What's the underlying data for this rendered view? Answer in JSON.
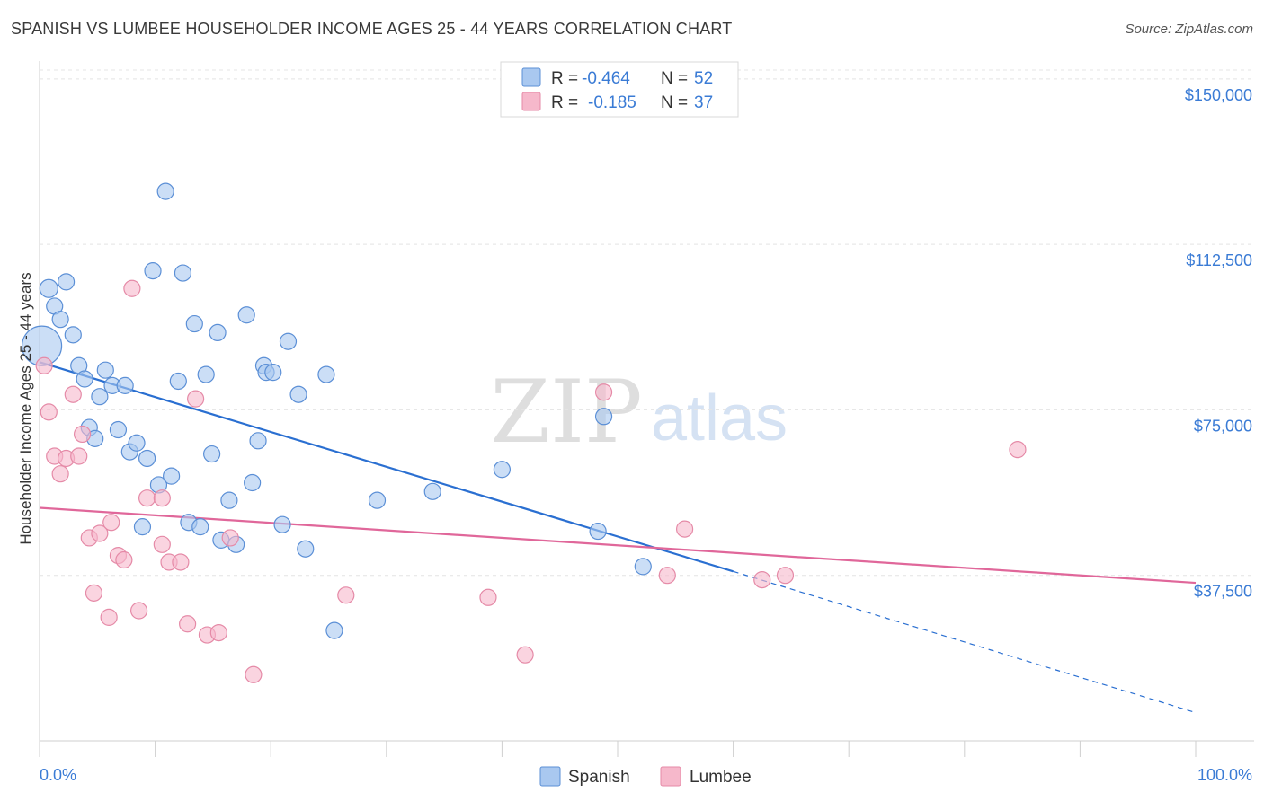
{
  "header": {
    "title": "SPANISH VS LUMBEE HOUSEHOLDER INCOME AGES 25 - 44 YEARS CORRELATION CHART",
    "source": "Source: ZipAtlas.com"
  },
  "watermark": {
    "zip": "ZIP",
    "atlas": "atlas"
  },
  "legend_box": {
    "rows": [
      {
        "r_label": "R =",
        "r_value": "-0.464",
        "n_label": "N =",
        "n_value": "52",
        "color": "#a9c8f0"
      },
      {
        "r_label": "R =",
        "r_value": "-0.185",
        "n_label": "N =",
        "n_value": "37",
        "color": "#f6b8cb"
      }
    ]
  },
  "bottom_legend": [
    {
      "label": "Spanish",
      "color": "#a9c8f0"
    },
    {
      "label": "Lumbee",
      "color": "#f6b8cb"
    }
  ],
  "chart_data": {
    "type": "scatter",
    "title": "SPANISH VS LUMBEE HOUSEHOLDER INCOME AGES 25 - 44 YEARS CORRELATION CHART",
    "xlabel": "",
    "ylabel": "Householder Income Ages 25 - 44 years",
    "xlim": [
      0,
      100
    ],
    "ylim": [
      0,
      152000
    ],
    "x_tick_labels": [
      "0.0%",
      "100.0%"
    ],
    "y_ticks": [
      37500,
      75000,
      112500,
      150000
    ],
    "y_tick_labels": [
      "$37,500",
      "$75,000",
      "$112,500",
      "$150,000"
    ],
    "grid": true,
    "legend_position": "top-center",
    "series": [
      {
        "name": "Spanish",
        "color": "#a9c8f0",
        "stroke": "#5b8fd6",
        "line_color": "#2a6fd1",
        "trend": {
          "x0": 0,
          "y0": 85800,
          "x1": 60,
          "y1": 38400,
          "dash_to_x": 100,
          "dash_to_y": 6400
        },
        "points": [
          [
            0.2,
            89500,
            22
          ],
          [
            0.8,
            102500,
            10
          ],
          [
            1.3,
            98500,
            9
          ],
          [
            1.8,
            95500,
            9
          ],
          [
            2.3,
            104000,
            9
          ],
          [
            2.9,
            92000,
            9
          ],
          [
            3.4,
            85000,
            9
          ],
          [
            3.9,
            82000,
            9
          ],
          [
            4.3,
            71000,
            9
          ],
          [
            4.8,
            68500,
            9
          ],
          [
            5.2,
            78000,
            9
          ],
          [
            5.7,
            84000,
            9
          ],
          [
            6.3,
            80500,
            9
          ],
          [
            6.8,
            70500,
            9
          ],
          [
            7.4,
            80500,
            9
          ],
          [
            7.8,
            65500,
            9
          ],
          [
            8.4,
            67500,
            9
          ],
          [
            8.9,
            48500,
            9
          ],
          [
            9.3,
            64000,
            9
          ],
          [
            9.8,
            106500,
            9
          ],
          [
            10.3,
            58000,
            9
          ],
          [
            10.9,
            124500,
            9
          ],
          [
            11.4,
            60000,
            9
          ],
          [
            12.0,
            81500,
            9
          ],
          [
            12.4,
            106000,
            9
          ],
          [
            12.9,
            49500,
            9
          ],
          [
            13.4,
            94500,
            9
          ],
          [
            13.9,
            48500,
            9
          ],
          [
            14.4,
            83000,
            9
          ],
          [
            14.9,
            65000,
            9
          ],
          [
            15.4,
            92500,
            9
          ],
          [
            15.7,
            45500,
            9
          ],
          [
            16.4,
            54500,
            9
          ],
          [
            17.0,
            44500,
            9
          ],
          [
            17.9,
            96500,
            9
          ],
          [
            18.4,
            58500,
            9
          ],
          [
            18.9,
            68000,
            9
          ],
          [
            19.4,
            85000,
            9
          ],
          [
            19.6,
            83500,
            9
          ],
          [
            20.2,
            83500,
            9
          ],
          [
            21.0,
            49000,
            9
          ],
          [
            21.5,
            90500,
            9
          ],
          [
            22.4,
            78500,
            9
          ],
          [
            23.0,
            43500,
            9
          ],
          [
            24.8,
            83000,
            9
          ],
          [
            25.5,
            25000,
            9
          ],
          [
            29.2,
            54500,
            9
          ],
          [
            34.0,
            56500,
            9
          ],
          [
            40.0,
            61500,
            9
          ],
          [
            48.3,
            47500,
            9
          ],
          [
            48.8,
            73500,
            9
          ],
          [
            52.2,
            39500,
            9
          ]
        ]
      },
      {
        "name": "Lumbee",
        "color": "#f6b8cb",
        "stroke": "#e58aa7",
        "line_color": "#e0679a",
        "trend": {
          "x0": 0,
          "y0": 52800,
          "x1": 100,
          "y1": 35800
        },
        "points": [
          [
            0.4,
            85000,
            9
          ],
          [
            0.8,
            74500,
            9
          ],
          [
            1.3,
            64500,
            9
          ],
          [
            1.8,
            60500,
            9
          ],
          [
            2.3,
            64000,
            9
          ],
          [
            2.9,
            78500,
            9
          ],
          [
            3.4,
            64500,
            9
          ],
          [
            3.7,
            69500,
            9
          ],
          [
            4.3,
            46000,
            9
          ],
          [
            4.7,
            33500,
            9
          ],
          [
            5.2,
            47000,
            9
          ],
          [
            6.0,
            28000,
            9
          ],
          [
            6.2,
            49500,
            9
          ],
          [
            6.8,
            42000,
            9
          ],
          [
            7.3,
            41000,
            9
          ],
          [
            8.0,
            102500,
            9
          ],
          [
            8.6,
            29500,
            9
          ],
          [
            9.3,
            55000,
            9
          ],
          [
            10.6,
            44500,
            9
          ],
          [
            10.6,
            55000,
            9
          ],
          [
            11.2,
            40500,
            9
          ],
          [
            12.2,
            40500,
            9
          ],
          [
            12.8,
            26500,
            9
          ],
          [
            13.5,
            77500,
            9
          ],
          [
            14.5,
            24000,
            9
          ],
          [
            15.5,
            24500,
            9
          ],
          [
            16.5,
            46000,
            9
          ],
          [
            18.5,
            15000,
            9
          ],
          [
            26.5,
            33000,
            9
          ],
          [
            38.8,
            32500,
            9
          ],
          [
            42.0,
            19500,
            9
          ],
          [
            48.8,
            79000,
            9
          ],
          [
            54.3,
            37500,
            9
          ],
          [
            55.8,
            48000,
            9
          ],
          [
            62.5,
            36500,
            9
          ],
          [
            64.5,
            37500,
            9
          ],
          [
            84.6,
            66000,
            9
          ]
        ]
      }
    ]
  }
}
